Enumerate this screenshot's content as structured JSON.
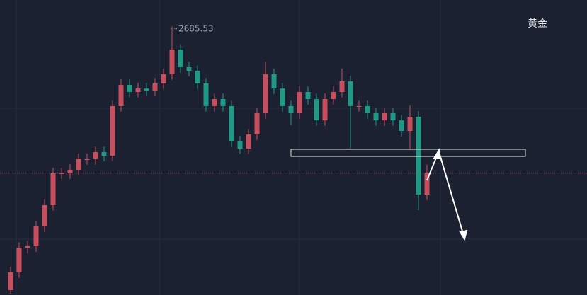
{
  "chart_data": {
    "type": "candlestick",
    "title": "黄金",
    "categories": [
      null,
      null,
      null,
      null,
      null,
      null,
      null,
      null,
      null,
      null,
      null,
      null,
      null,
      null,
      null,
      null,
      null,
      null,
      null,
      null,
      null,
      null,
      null,
      null,
      null,
      null,
      null,
      null,
      null,
      null,
      null,
      null,
      null,
      null,
      null,
      null,
      null,
      null,
      null,
      null,
      null,
      null,
      null,
      null,
      null,
      null,
      null,
      null,
      null,
      null
    ],
    "open": [
      2493.6,
      2506.5,
      2524.5,
      2525.6,
      2540.0,
      2555.5,
      2578.7,
      2578.7,
      2581.3,
      2589.0,
      2589.0,
      2594.1,
      2591.6,
      2627.7,
      2643.1,
      2638.0,
      2640.5,
      2639.0,
      2644.2,
      2650.9,
      2668.9,
      2656.0,
      2653.4,
      2644.2,
      2627.7,
      2632.8,
      2627.7,
      2601.9,
      2596.7,
      2607.0,
      2622.5,
      2650.9,
      2640.5,
      2627.7,
      2622.5,
      2638.0,
      2632.8,
      2617.3,
      2632.8,
      2638.0,
      2645.7,
      2627.7,
      2627.7,
      2622.5,
      2617.3,
      2622.5,
      2617.3,
      2609.6,
      2619.9,
      2563.2
    ],
    "high": [
      2510.5,
      2528.5,
      2529.6,
      2544.0,
      2559.5,
      2582.7,
      2582.7,
      2585.3,
      2593.0,
      2593.0,
      2598.1,
      2598.1,
      2631.7,
      2647.1,
      2647.1,
      2644.5,
      2644.5,
      2648.2,
      2654.9,
      2685.53,
      2672.9,
      2660.0,
      2657.4,
      2648.2,
      2636.8,
      2636.8,
      2631.7,
      2605.9,
      2611.0,
      2626.5,
      2660.0,
      2654.9,
      2644.5,
      2631.7,
      2642.0,
      2642.0,
      2636.8,
      2636.8,
      2642.0,
      2655.0,
      2649.7,
      2631.7,
      2631.7,
      2626.5,
      2626.5,
      2626.5,
      2621.3,
      2628.0,
      2623.9,
      2585.0
    ],
    "low": [
      2491.0,
      2502.5,
      2520.5,
      2521.6,
      2536.0,
      2551.5,
      2574.7,
      2574.7,
      2577.3,
      2585.0,
      2585.0,
      2587.6,
      2587.6,
      2623.7,
      2634.0,
      2634.0,
      2635.0,
      2635.0,
      2640.2,
      2646.9,
      2652.0,
      2649.4,
      2640.2,
      2623.7,
      2623.7,
      2623.7,
      2597.9,
      2592.7,
      2592.7,
      2603.0,
      2618.5,
      2636.5,
      2623.7,
      2614.0,
      2618.5,
      2628.8,
      2613.3,
      2613.3,
      2628.8,
      2634.0,
      2596.7,
      2623.7,
      2618.5,
      2613.3,
      2613.3,
      2613.3,
      2605.6,
      2596.0,
      2551.9,
      2559.2
    ],
    "close": [
      2506.5,
      2524.5,
      2525.6,
      2540.0,
      2555.5,
      2578.7,
      2578.7,
      2581.3,
      2589.0,
      2589.0,
      2594.1,
      2591.6,
      2627.7,
      2643.1,
      2638.0,
      2640.5,
      2639.0,
      2644.2,
      2650.9,
      2668.9,
      2656.0,
      2653.4,
      2644.2,
      2627.7,
      2632.8,
      2627.7,
      2601.9,
      2596.7,
      2607.0,
      2622.5,
      2650.9,
      2640.5,
      2627.7,
      2622.5,
      2638.0,
      2632.8,
      2617.3,
      2632.8,
      2638.0,
      2645.7,
      2627.7,
      2627.7,
      2622.5,
      2617.3,
      2622.5,
      2617.3,
      2609.6,
      2619.9,
      2563.2,
      2578.7
    ],
    "up_color": "#c8505e",
    "down_color": "#1f9a87",
    "ylim": [
      2490,
      2705
    ]
  }
}
